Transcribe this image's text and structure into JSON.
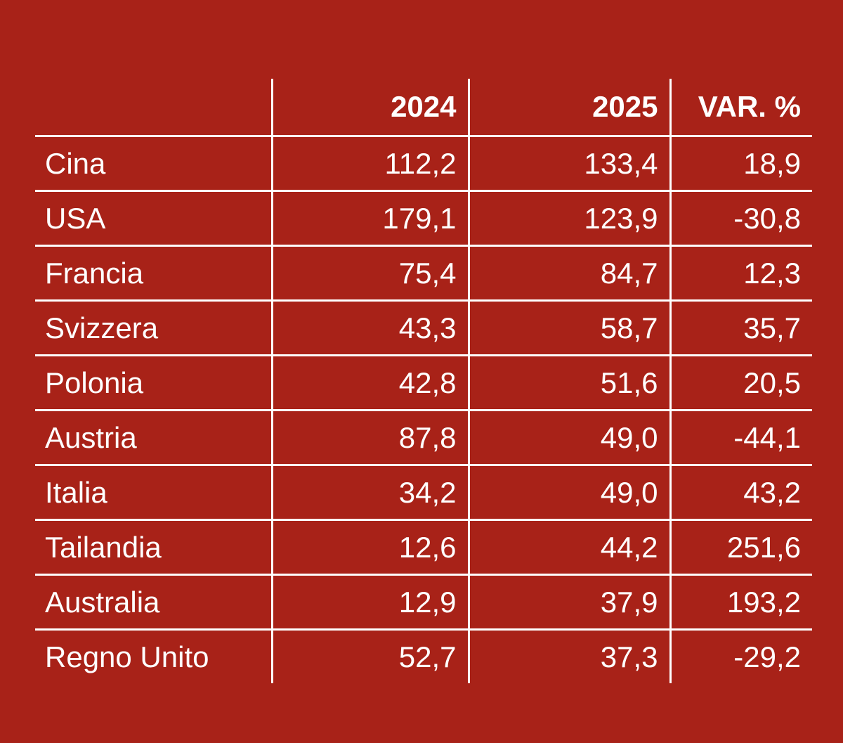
{
  "colors": {
    "background": "#A82218",
    "text": "#ffffff",
    "grid": "#ffffff"
  },
  "chart_data": {
    "type": "table",
    "columns": [
      "",
      "2024",
      "2025",
      "VAR. %"
    ],
    "rows": [
      {
        "country": "Cina",
        "y2024": "112,2",
        "y2025": "133,4",
        "var": "18,9"
      },
      {
        "country": "USA",
        "y2024": "179,1",
        "y2025": "123,9",
        "var": "-30,8"
      },
      {
        "country": "Francia",
        "y2024": "75,4",
        "y2025": "84,7",
        "var": "12,3"
      },
      {
        "country": "Svizzera",
        "y2024": "43,3",
        "y2025": "58,7",
        "var": "35,7"
      },
      {
        "country": "Polonia",
        "y2024": "42,8",
        "y2025": "51,6",
        "var": "20,5"
      },
      {
        "country": "Austria",
        "y2024": "87,8",
        "y2025": "49,0",
        "var": "-44,1"
      },
      {
        "country": "Italia",
        "y2024": "34,2",
        "y2025": "49,0",
        "var": "43,2"
      },
      {
        "country": "Tailandia",
        "y2024": "12,6",
        "y2025": "44,2",
        "var": "251,6"
      },
      {
        "country": "Australia",
        "y2024": "12,9",
        "y2025": "37,9",
        "var": "193,2"
      },
      {
        "country": "Regno Unito",
        "y2024": "52,7",
        "y2025": "37,3",
        "var": "-29,2"
      }
    ]
  }
}
